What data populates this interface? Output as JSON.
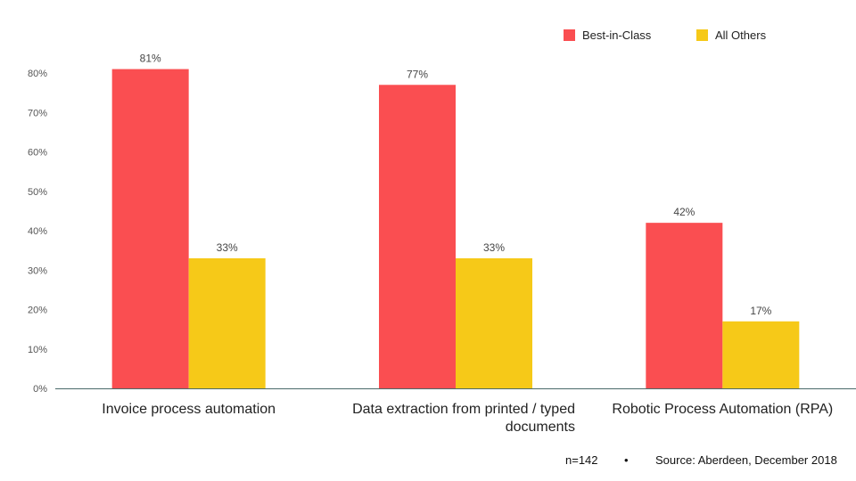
{
  "chart_data": {
    "type": "bar",
    "categories": [
      [
        "Invoice process automation"
      ],
      [
        "Data extraction from printed / typed",
        "documents"
      ],
      [
        "Robotic Process Automation (RPA)"
      ]
    ],
    "series": [
      {
        "name": "Best-in-Class",
        "values": [
          81,
          77,
          42
        ],
        "color": "#fa4e51"
      },
      {
        "name": "All Others",
        "values": [
          33,
          33,
          17
        ],
        "color": "#f6c918"
      }
    ],
    "value_suffix": "%",
    "ylim": [
      0,
      80
    ],
    "yticks": [
      0,
      10,
      20,
      30,
      40,
      50,
      60,
      70,
      80
    ],
    "ytick_labels": [
      "0%",
      "10%",
      "20%",
      "30%",
      "40%",
      "50%",
      "60%",
      "70%",
      "80%"
    ],
    "legend_position": "top-right",
    "grid": false
  },
  "footer": {
    "sample": "n=142",
    "separator": "•",
    "source": "Source: Aberdeen, December 2018"
  },
  "colors": {
    "axis": "#4a6a6a",
    "best_in_class": "#fa4e51",
    "all_others": "#f6c918"
  }
}
